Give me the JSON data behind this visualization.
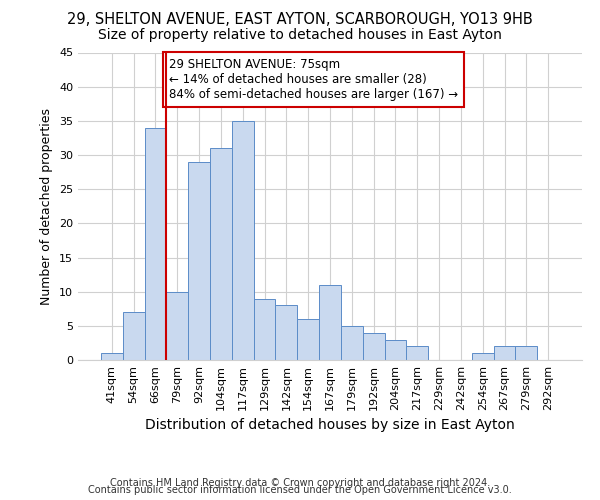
{
  "title1": "29, SHELTON AVENUE, EAST AYTON, SCARBOROUGH, YO13 9HB",
  "title2": "Size of property relative to detached houses in East Ayton",
  "xlabel": "Distribution of detached houses by size in East Ayton",
  "ylabel": "Number of detached properties",
  "bins": [
    "41sqm",
    "54sqm",
    "66sqm",
    "79sqm",
    "92sqm",
    "104sqm",
    "117sqm",
    "129sqm",
    "142sqm",
    "154sqm",
    "167sqm",
    "179sqm",
    "192sqm",
    "204sqm",
    "217sqm",
    "229sqm",
    "242sqm",
    "254sqm",
    "267sqm",
    "279sqm",
    "292sqm"
  ],
  "values": [
    1,
    7,
    34,
    10,
    29,
    31,
    35,
    9,
    8,
    6,
    11,
    5,
    4,
    3,
    2,
    0,
    0,
    1,
    2,
    2,
    0
  ],
  "bar_color": "#c9d9ef",
  "bar_edge_color": "#5b8cc8",
  "vline_color": "#cc0000",
  "annotation_text": "29 SHELTON AVENUE: 75sqm\n← 14% of detached houses are smaller (28)\n84% of semi-detached houses are larger (167) →",
  "annotation_box_color": "#ffffff",
  "annotation_box_edge": "#cc0000",
  "ylim": [
    0,
    45
  ],
  "yticks": [
    0,
    5,
    10,
    15,
    20,
    25,
    30,
    35,
    40,
    45
  ],
  "grid_color": "#d0d0d0",
  "background_color": "#ffffff",
  "footer1": "Contains HM Land Registry data © Crown copyright and database right 2024.",
  "footer2": "Contains public sector information licensed under the Open Government Licence v3.0.",
  "title1_fontsize": 10.5,
  "title2_fontsize": 10,
  "xlabel_fontsize": 10,
  "ylabel_fontsize": 9,
  "tick_fontsize": 8,
  "annotation_fontsize": 8.5,
  "footer_fontsize": 7
}
